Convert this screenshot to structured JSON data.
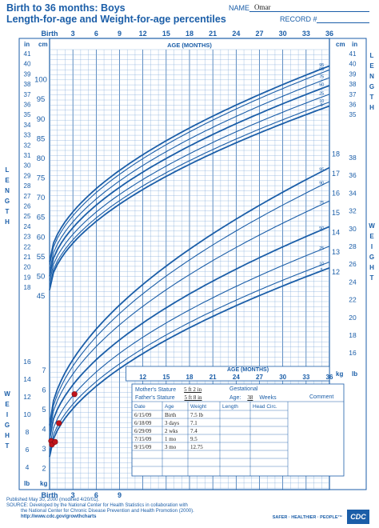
{
  "header": {
    "title_line1": "Birth to 36 months: Boys",
    "title_line2": "Length-for-age and Weight-for-age percentiles",
    "name_label": "NAME",
    "name_value": "Omar",
    "record_label": "RECORD #"
  },
  "record_table": {
    "mothers_stature_label": "Mother's Stature",
    "mothers_stature_value": "5 ft 2 in",
    "fathers_stature_label": "Father's Stature",
    "fathers_stature_value": "5 ft 8 in",
    "gestational_label": "Gestational",
    "age_label": "Age:",
    "age_value": "38",
    "weeks_label": "Weeks",
    "comment_label": "Comment",
    "columns": [
      "Date",
      "Age",
      "Weight",
      "Length",
      "Head Circ."
    ],
    "rows": [
      [
        "6/15/09",
        "Birth",
        "7.5 lb",
        "",
        ""
      ],
      [
        "6/18/09",
        "3 days",
        "7.1",
        "",
        ""
      ],
      [
        "6/29/09",
        "2 wks",
        "7.4",
        "",
        ""
      ],
      [
        "7/15/09",
        "1 mo",
        "9.5",
        "",
        ""
      ],
      [
        "9/15/09",
        "3 mo",
        "12.75",
        "",
        ""
      ]
    ]
  },
  "footer": {
    "line1": "Published May 30, 2000 (modified 4/20/01).",
    "line2": "SOURCE: Developed by the National Center for Health Statistics in collaboration with",
    "line3": "the National Center for Chronic Disease Prevention and Health Promotion (2000).",
    "line4": "http://www.cdc.gov/growthcharts",
    "logo_text": "CDC",
    "tagline": "SAFER · HEALTHIER · PEOPLE™"
  },
  "colors": {
    "chart_blue": "#1b5ea8",
    "grid_blue": "#7fa9d8",
    "point_red": "#c0141b"
  },
  "chart_data": {
    "type": "line",
    "x_top_ticks": [
      "Birth",
      "3",
      "6",
      "9",
      "12",
      "15",
      "18",
      "21",
      "24",
      "27",
      "30",
      "33",
      "36"
    ],
    "x_bottom_ticks": [
      "Birth",
      "3",
      "6",
      "9"
    ],
    "x_mid_ticks": [
      "12",
      "15",
      "18",
      "21",
      "24",
      "27",
      "30",
      "33",
      "36"
    ],
    "xlabel": "AGE (MONTHS)",
    "length_axis": {
      "label": "LENGTH",
      "unit_cm": "cm",
      "unit_in": "in",
      "cm_ticks": [
        "100",
        "95",
        "90",
        "85",
        "80",
        "75",
        "70",
        "65",
        "60",
        "55",
        "50",
        "45"
      ],
      "in_ticks_left": [
        "41",
        "40",
        "39",
        "38",
        "37",
        "36",
        "35",
        "34",
        "33",
        "32",
        "31",
        "30",
        "29",
        "28",
        "27",
        "26",
        "25",
        "24",
        "23",
        "22",
        "21",
        "20",
        "19",
        "18"
      ],
      "in_ticks_right": [
        "41",
        "40",
        "39",
        "38",
        "37",
        "36",
        "35"
      ]
    },
    "weight_axis": {
      "label": "WEIGHT",
      "unit_kg": "kg",
      "unit_lb": "lb",
      "kg_ticks_right": [
        "18",
        "17",
        "16",
        "15",
        "14",
        "13",
        "12"
      ],
      "lb_ticks_right": [
        "38",
        "36",
        "34",
        "32",
        "30",
        "28",
        "26",
        "24",
        "22",
        "20",
        "18",
        "16"
      ],
      "kg_ticks_left": [
        "7",
        "6",
        "5",
        "4",
        "3",
        "2"
      ],
      "lb_ticks_left": [
        "16",
        "14",
        "12",
        "10",
        "8",
        "6",
        "4"
      ]
    },
    "percentile_labels": [
      "95",
      "90",
      "75",
      "50",
      "25",
      "10",
      "5"
    ],
    "length_percentiles": [
      {
        "name": "95",
        "birth": 53.7,
        "m36": 103.5
      },
      {
        "name": "90",
        "birth": 52.7,
        "m36": 102.5
      },
      {
        "name": "75",
        "birth": 51.3,
        "m36": 100.5
      },
      {
        "name": "50",
        "birth": 50.0,
        "m36": 98.5
      },
      {
        "name": "25",
        "birth": 48.5,
        "m36": 96.3
      },
      {
        "name": "10",
        "birth": 47.3,
        "m36": 94.3
      },
      {
        "name": "5",
        "birth": 46.5,
        "m36": 93.3
      }
    ],
    "weight_percentiles": [
      {
        "name": "95",
        "birth": 4.2,
        "m36": 17.3
      },
      {
        "name": "90",
        "birth": 4.0,
        "m36": 16.6
      },
      {
        "name": "75",
        "birth": 3.8,
        "m36": 15.6
      },
      {
        "name": "50",
        "birth": 3.5,
        "m36": 14.3
      },
      {
        "name": "25",
        "birth": 3.1,
        "m36": 13.3
      },
      {
        "name": "10",
        "birth": 2.8,
        "m36": 12.5
      },
      {
        "name": "5",
        "birth": 2.6,
        "m36": 12.2
      }
    ],
    "weight_points_lb": [
      {
        "age_months": 0,
        "lb": 7.5
      },
      {
        "age_months": 0.1,
        "lb": 7.1
      },
      {
        "age_months": 0.5,
        "lb": 7.4
      },
      {
        "age_months": 1,
        "lb": 9.5
      },
      {
        "age_months": 3,
        "lb": 12.75
      }
    ]
  }
}
